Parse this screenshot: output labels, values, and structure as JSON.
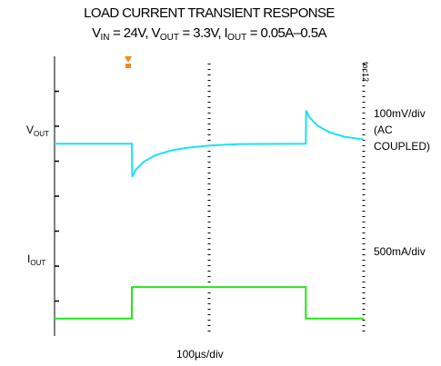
{
  "title": {
    "line1": "LOAD CURRENT TRANSIENT RESPONSE",
    "line2": [
      {
        "t": "V"
      },
      {
        "sub": "IN"
      },
      {
        "t": " = 24V, V"
      },
      {
        "sub": "OUT"
      },
      {
        "t": " = 3.3V, I"
      },
      {
        "sub": "OUT"
      },
      {
        "t": " = 0.05A–0.5A"
      }
    ]
  },
  "figure_tag": "toc12",
  "labels": {
    "vout_main": "V",
    "vout_sub": "OUT",
    "iout_main": "I",
    "iout_sub": "OUT",
    "vout_scale_1": "100mV/div",
    "vout_scale_2": "(AC",
    "vout_scale_3": "COUPLED)",
    "iout_scale": "500mA/div",
    "time_scale": "100µs/div"
  },
  "colors": {
    "vout_trace": "#19e3f2",
    "iout_trace": "#22e61a",
    "trigger_marker": "#ef8a1c",
    "axis": "#000000"
  },
  "chart_data": {
    "type": "line",
    "x_unit": "µs",
    "x_range": [
      0,
      400
    ],
    "x_divisions": 4,
    "time_per_div": "100µs/div",
    "load_step_up_at": 100,
    "load_step_down_at": 325,
    "series": [
      {
        "name": "VOUT",
        "unit": "mV",
        "scale_per_div": "100mV/div",
        "coupling": "AC",
        "points": [
          [
            0,
            0
          ],
          [
            100,
            0
          ],
          [
            100.5,
            -95
          ],
          [
            105,
            -75
          ],
          [
            115,
            -52
          ],
          [
            130,
            -33
          ],
          [
            150,
            -20
          ],
          [
            170,
            -12
          ],
          [
            200,
            -5
          ],
          [
            240,
            -1
          ],
          [
            325,
            0
          ],
          [
            325.5,
            95
          ],
          [
            330,
            75
          ],
          [
            340,
            52
          ],
          [
            355,
            33
          ],
          [
            375,
            20
          ],
          [
            400,
            12
          ]
        ]
      },
      {
        "name": "IOUT",
        "unit": "A",
        "scale_per_div": "500mA/div",
        "points": [
          [
            0,
            0.05
          ],
          [
            100,
            0.05
          ],
          [
            100,
            0.5
          ],
          [
            325,
            0.5
          ],
          [
            325,
            0.05
          ],
          [
            400,
            0.05
          ]
        ]
      }
    ]
  }
}
